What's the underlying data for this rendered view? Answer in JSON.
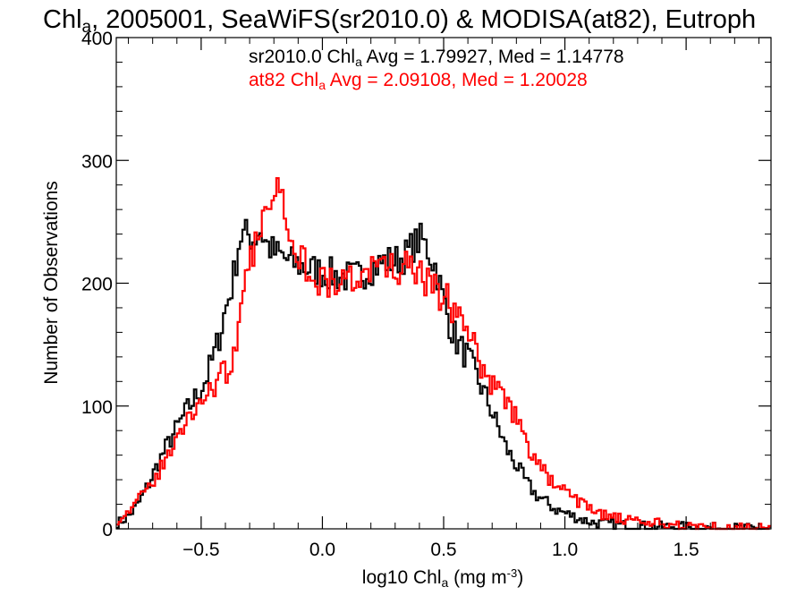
{
  "chart_data": {
    "type": "line",
    "title": {
      "part1": "Chl",
      "sub": "a",
      "part2": ", 2005001, SeaWiFS(sr2010.0) & MODISA(at82), Eutroph"
    },
    "annotations": [
      {
        "pre": "sr2010.0 Chl",
        "sub": "a",
        "post": " Avg = 1.79927, Med = 1.14778",
        "color": "#000000"
      },
      {
        "pre": "at82 Chl",
        "sub": "a",
        "post": " Avg = 2.09108, Med = 1.20028",
        "color": "#ff0000"
      }
    ],
    "xlabel": {
      "pre": "log10 Chl",
      "sub": "a",
      "mid": " (mg m",
      "sup": "-3",
      "post": ")"
    },
    "ylabel": "Number of Observations",
    "xlim": [
      -0.85,
      1.85
    ],
    "ylim": [
      0,
      400
    ],
    "xticks": [
      -0.5,
      0.0,
      0.5,
      1.0,
      1.5
    ],
    "xtick_labels": [
      "−0.5",
      "0.0",
      "0.5",
      "1.0",
      "1.5"
    ],
    "yticks": [
      0,
      100,
      200,
      300,
      400
    ],
    "ytick_labels": [
      "0",
      "100",
      "200",
      "300",
      "400"
    ],
    "x_minor_step": 0.1,
    "y_minor_step": 20,
    "grid": false,
    "series": [
      {
        "name": "sr2010.0",
        "color": "#000000",
        "points": [
          [
            -0.84,
            5
          ],
          [
            -0.8,
            10
          ],
          [
            -0.76,
            20
          ],
          [
            -0.72,
            35
          ],
          [
            -0.68,
            52
          ],
          [
            -0.64,
            68
          ],
          [
            -0.6,
            82
          ],
          [
            -0.56,
            96
          ],
          [
            -0.52,
            108
          ],
          [
            -0.48,
            122
          ],
          [
            -0.44,
            145
          ],
          [
            -0.4,
            178
          ],
          [
            -0.37,
            200
          ],
          [
            -0.34,
            238
          ],
          [
            -0.31,
            240
          ],
          [
            -0.28,
            235
          ],
          [
            -0.26,
            245
          ],
          [
            -0.23,
            232
          ],
          [
            -0.2,
            225
          ],
          [
            -0.17,
            222
          ],
          [
            -0.14,
            218
          ],
          [
            -0.1,
            215
          ],
          [
            -0.06,
            212
          ],
          [
            -0.02,
            210
          ],
          [
            0.02,
            208
          ],
          [
            0.06,
            206
          ],
          [
            0.1,
            205
          ],
          [
            0.14,
            205
          ],
          [
            0.18,
            210
          ],
          [
            0.22,
            214
          ],
          [
            0.26,
            218
          ],
          [
            0.3,
            218
          ],
          [
            0.34,
            222
          ],
          [
            0.38,
            232
          ],
          [
            0.41,
            236
          ],
          [
            0.44,
            225
          ],
          [
            0.47,
            212
          ],
          [
            0.5,
            185
          ],
          [
            0.53,
            165
          ],
          [
            0.56,
            150
          ],
          [
            0.6,
            140
          ],
          [
            0.64,
            122
          ],
          [
            0.68,
            105
          ],
          [
            0.72,
            85
          ],
          [
            0.76,
            65
          ],
          [
            0.8,
            52
          ],
          [
            0.84,
            38
          ],
          [
            0.88,
            28
          ],
          [
            0.92,
            22
          ],
          [
            0.96,
            16
          ],
          [
            1.0,
            13
          ],
          [
            1.04,
            10
          ],
          [
            1.08,
            7
          ],
          [
            1.12,
            5
          ],
          [
            1.18,
            4
          ],
          [
            1.25,
            3
          ],
          [
            1.35,
            2
          ],
          [
            1.45,
            2
          ],
          [
            1.55,
            1
          ],
          [
            1.65,
            1
          ],
          [
            1.84,
            0
          ]
        ]
      },
      {
        "name": "at82",
        "color": "#ff0000",
        "points": [
          [
            -0.84,
            8
          ],
          [
            -0.8,
            15
          ],
          [
            -0.76,
            22
          ],
          [
            -0.72,
            32
          ],
          [
            -0.68,
            45
          ],
          [
            -0.64,
            58
          ],
          [
            -0.6,
            72
          ],
          [
            -0.56,
            88
          ],
          [
            -0.52,
            100
          ],
          [
            -0.48,
            110
          ],
          [
            -0.44,
            118
          ],
          [
            -0.4,
            128
          ],
          [
            -0.37,
            140
          ],
          [
            -0.34,
            165
          ],
          [
            -0.31,
            205
          ],
          [
            -0.28,
            228
          ],
          [
            -0.25,
            245
          ],
          [
            -0.22,
            272
          ],
          [
            -0.19,
            282
          ],
          [
            -0.16,
            265
          ],
          [
            -0.13,
            245
          ],
          [
            -0.1,
            225
          ],
          [
            -0.06,
            212
          ],
          [
            -0.02,
            205
          ],
          [
            0.02,
            200
          ],
          [
            0.06,
            200
          ],
          [
            0.1,
            202
          ],
          [
            0.14,
            206
          ],
          [
            0.18,
            208
          ],
          [
            0.22,
            212
          ],
          [
            0.26,
            212
          ],
          [
            0.3,
            212
          ],
          [
            0.34,
            212
          ],
          [
            0.38,
            210
          ],
          [
            0.42,
            202
          ],
          [
            0.46,
            194
          ],
          [
            0.5,
            190
          ],
          [
            0.54,
            180
          ],
          [
            0.58,
            165
          ],
          [
            0.62,
            150
          ],
          [
            0.66,
            132
          ],
          [
            0.7,
            118
          ],
          [
            0.74,
            108
          ],
          [
            0.78,
            98
          ],
          [
            0.82,
            80
          ],
          [
            0.86,
            62
          ],
          [
            0.9,
            50
          ],
          [
            0.94,
            40
          ],
          [
            0.98,
            32
          ],
          [
            1.02,
            28
          ],
          [
            1.06,
            22
          ],
          [
            1.1,
            17
          ],
          [
            1.15,
            12
          ],
          [
            1.2,
            9
          ],
          [
            1.25,
            7
          ],
          [
            1.3,
            5
          ],
          [
            1.4,
            4
          ],
          [
            1.5,
            3
          ],
          [
            1.6,
            2
          ],
          [
            1.7,
            1
          ],
          [
            1.84,
            1
          ]
        ]
      }
    ]
  }
}
